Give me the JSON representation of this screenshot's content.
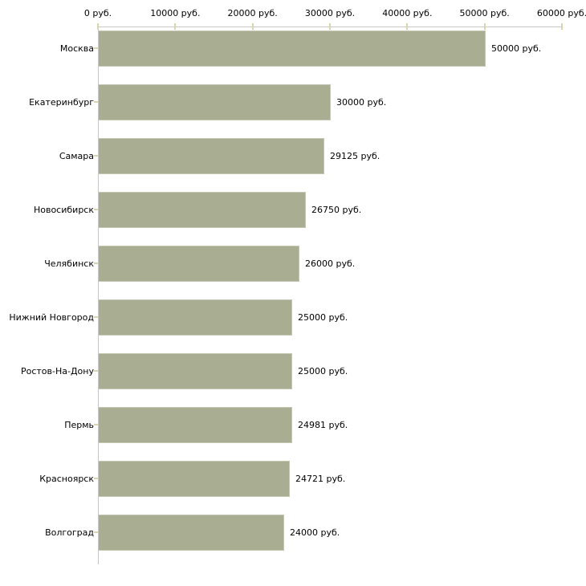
{
  "chart_data": {
    "type": "bar",
    "orientation": "horizontal",
    "title": "",
    "xlabel": "",
    "ylabel": "",
    "unit": "руб.",
    "legend": "none",
    "grid": "off",
    "categories": [
      "Москва",
      "Екатеринбург",
      "Самара",
      "Новосибирск",
      "Челябинск",
      "Нижний Новгород",
      "Ростов-На-Дону",
      "Пермь",
      "Красноярск",
      "Волгоград"
    ],
    "values": [
      50000,
      30000,
      29125,
      26750,
      26000,
      25000,
      25000,
      24981,
      24721,
      24000
    ],
    "value_labels": [
      "50000 руб.",
      "30000 руб.",
      "29125 руб.",
      "26750 руб.",
      "26000 руб.",
      "25000 руб.",
      "25000 руб.",
      "24981 руб.",
      "24721 руб.",
      "24000 руб."
    ],
    "x_axis": {
      "position": "top",
      "range": [
        0,
        60000
      ],
      "ticks": [
        0,
        10000,
        20000,
        30000,
        40000,
        50000,
        60000
      ],
      "tick_labels": [
        "0 руб.",
        "10000 руб.",
        "20000 руб.",
        "30000 руб.",
        "40000 руб.",
        "50000 руб.",
        "60000 руб."
      ]
    },
    "colors": {
      "bar_fill": "#a9ae93",
      "bar_border": "#c4c8b2",
      "axis_line": "#c7c7c7",
      "tick_mark": "#d9d6ad",
      "label_text": "#000000",
      "background": "#ffffff"
    }
  }
}
